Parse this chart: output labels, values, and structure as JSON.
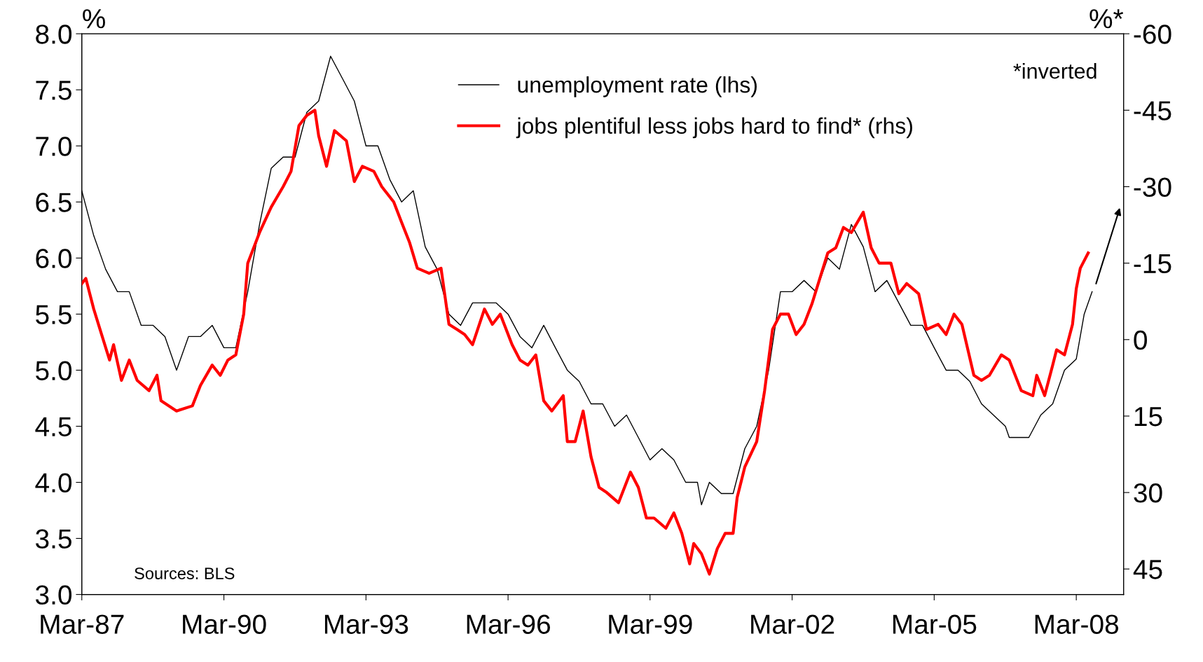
{
  "chart_data": {
    "type": "line",
    "ylabel": "%",
    "y2label": "%*",
    "annotations": [
      "*inverted",
      "Sources: BLS"
    ],
    "xlim": [
      "1987-03",
      "2009-03"
    ],
    "xticks": [
      {
        "value": "1987-03",
        "label": "Mar-87"
      },
      {
        "value": "1990-03",
        "label": "Mar-90"
      },
      {
        "value": "1993-03",
        "label": "Mar-93"
      },
      {
        "value": "1996-03",
        "label": "Mar-96"
      },
      {
        "value": "1999-03",
        "label": "Mar-99"
      },
      {
        "value": "2002-03",
        "label": "Mar-02"
      },
      {
        "value": "2005-03",
        "label": "Mar-05"
      },
      {
        "value": "2008-03",
        "label": "Mar-08"
      }
    ],
    "ylim": [
      3,
      8
    ],
    "yticks": [
      {
        "value": 3,
        "label": "3.0"
      },
      {
        "value": 3.5,
        "label": "3.5"
      },
      {
        "value": 4,
        "label": "4.0"
      },
      {
        "value": 4.5,
        "label": "4.5"
      },
      {
        "value": 5,
        "label": "5.0"
      },
      {
        "value": 5.5,
        "label": "5.5"
      },
      {
        "value": 6,
        "label": "6.0"
      },
      {
        "value": 6.5,
        "label": "6.5"
      },
      {
        "value": 7,
        "label": "7.0"
      },
      {
        "value": 7.5,
        "label": "7.5"
      },
      {
        "value": 8,
        "label": "8.0"
      }
    ],
    "y2lim": [
      50,
      -60
    ],
    "y2ticks": [
      -60,
      -45,
      -30,
      -15,
      0,
      15,
      30,
      45
    ],
    "grid": false,
    "legend": "top",
    "marker": "none",
    "line_style": "solid",
    "series": [
      {
        "name": "unemployment rate (lhs)",
        "color": "#000000",
        "x": [
          "1987-03",
          "1987-06",
          "1987-09",
          "1987-12",
          "1988-03",
          "1988-06",
          "1988-09",
          "1988-12",
          "1989-03",
          "1989-06",
          "1989-09",
          "1989-12",
          "1990-03",
          "1990-06",
          "1990-09",
          "1990-12",
          "1991-03",
          "1991-06",
          "1991-09",
          "1991-12",
          "1992-03",
          "1992-06",
          "1992-09",
          "1992-12",
          "1993-03",
          "1993-06",
          "1993-09",
          "1993-12",
          "1994-03",
          "1994-06",
          "1994-09",
          "1994-12",
          "1995-03",
          "1995-06",
          "1995-09",
          "1995-12",
          "1996-03",
          "1996-06",
          "1996-09",
          "1996-12",
          "1997-03",
          "1997-06",
          "1997-09",
          "1997-12",
          "1998-03",
          "1998-06",
          "1998-09",
          "1998-12",
          "1999-03",
          "1999-06",
          "1999-09",
          "1999-12",
          "2000-03",
          "2000-04",
          "2000-06",
          "2000-09",
          "2000-12",
          "2001-03",
          "2001-06",
          "2001-09",
          "2001-12",
          "2002-03",
          "2002-06",
          "2002-09",
          "2002-12",
          "2003-03",
          "2003-06",
          "2003-09",
          "2003-12",
          "2004-03",
          "2004-06",
          "2004-09",
          "2004-12",
          "2005-03",
          "2005-06",
          "2005-09",
          "2005-12",
          "2006-03",
          "2006-06",
          "2006-09",
          "2006-10",
          "2006-12",
          "2007-03",
          "2007-06",
          "2007-09",
          "2007-12",
          "2008-03",
          "2008-05",
          "2008-07"
        ],
        "values": [
          6.6,
          6.2,
          5.9,
          5.7,
          5.7,
          5.4,
          5.4,
          5.3,
          5.0,
          5.3,
          5.3,
          5.4,
          5.2,
          5.2,
          5.7,
          6.3,
          6.8,
          6.9,
          6.9,
          7.3,
          7.4,
          7.8,
          7.6,
          7.4,
          7.0,
          7.0,
          6.7,
          6.5,
          6.6,
          6.1,
          5.9,
          5.5,
          5.4,
          5.6,
          5.6,
          5.6,
          5.5,
          5.3,
          5.2,
          5.4,
          5.2,
          5.0,
          4.9,
          4.7,
          4.7,
          4.5,
          4.6,
          4.4,
          4.2,
          4.3,
          4.2,
          4.0,
          4.0,
          3.8,
          4.0,
          3.9,
          3.9,
          4.3,
          4.5,
          5.0,
          5.7,
          5.7,
          5.8,
          5.7,
          6.0,
          5.9,
          6.3,
          6.1,
          5.7,
          5.8,
          5.6,
          5.4,
          5.4,
          5.2,
          5.0,
          5.0,
          4.9,
          4.7,
          4.6,
          4.5,
          4.4,
          4.4,
          4.4,
          4.6,
          4.7,
          5.0,
          5.1,
          5.5,
          5.7
        ]
      },
      {
        "name": "jobs plentiful less jobs hard to find* (rhs)",
        "color": "#ff0000",
        "axis": "y2",
        "x": [
          "1987-03",
          "1987-04",
          "1987-06",
          "1987-08",
          "1987-10",
          "1987-11",
          "1988-01",
          "1988-03",
          "1988-05",
          "1988-08",
          "1988-10",
          "1988-11",
          "1989-03",
          "1989-07",
          "1989-09",
          "1989-12",
          "1990-02",
          "1990-04",
          "1990-06",
          "1990-08",
          "1990-09",
          "1990-12",
          "1991-03",
          "1991-06",
          "1991-08",
          "1991-10",
          "1991-12",
          "1992-02",
          "1992-03",
          "1992-05",
          "1992-07",
          "1992-10",
          "1992-12",
          "1993-02",
          "1993-05",
          "1993-07",
          "1993-10",
          "1993-12",
          "1994-02",
          "1994-04",
          "1994-07",
          "1994-10",
          "1994-12",
          "1995-02",
          "1995-04",
          "1995-06",
          "1995-09",
          "1995-11",
          "1996-01",
          "1996-04",
          "1996-06",
          "1996-08",
          "1996-10",
          "1996-12",
          "1997-02",
          "1997-05",
          "1997-06",
          "1997-08",
          "1997-10",
          "1997-12",
          "1998-02",
          "1998-04",
          "1998-07",
          "1998-10",
          "1998-12",
          "1999-02",
          "1999-04",
          "1999-07",
          "1999-09",
          "1999-11",
          "2000-01",
          "2000-02",
          "2000-04",
          "2000-06",
          "2000-08",
          "2000-10",
          "2000-12",
          "2001-01",
          "2001-03",
          "2001-06",
          "2001-08",
          "2001-10",
          "2001-12",
          "2002-02",
          "2002-04",
          "2002-06",
          "2002-08",
          "2002-10",
          "2002-12",
          "2003-02",
          "2003-04",
          "2003-06",
          "2003-09",
          "2003-11",
          "2004-01",
          "2004-04",
          "2004-06",
          "2004-08",
          "2004-11",
          "2005-01",
          "2005-04",
          "2005-06",
          "2005-08",
          "2005-10",
          "2006-01",
          "2006-03",
          "2006-05",
          "2006-08",
          "2006-10",
          "2007-01",
          "2007-04",
          "2007-05",
          "2007-07",
          "2007-09",
          "2007-10",
          "2007-12",
          "2008-02",
          "2008-03",
          "2008-04",
          "2008-06"
        ],
        "values": [
          -11,
          -12,
          -6,
          -1,
          4,
          1,
          8,
          4,
          8,
          10,
          7,
          12,
          14,
          13,
          9,
          5,
          7,
          4,
          3,
          -5,
          -15,
          -21,
          -26,
          -30,
          -33,
          -42,
          -44,
          -45,
          -40,
          -34,
          -41,
          -39,
          -31,
          -34,
          -33,
          -30,
          -27,
          -23,
          -19,
          -14,
          -13,
          -14,
          -3,
          -2,
          -1,
          1,
          -6,
          -3,
          -5,
          1,
          4,
          5,
          3,
          12,
          14,
          11,
          20,
          20,
          14,
          23,
          29,
          30,
          32,
          26,
          29,
          35,
          35,
          37,
          34,
          38,
          44,
          40,
          42,
          46,
          41,
          38,
          38,
          31,
          25,
          20,
          10,
          -2,
          -5,
          -5,
          -1,
          -3,
          -7,
          -12,
          -17,
          -18,
          -22,
          -21,
          -25,
          -18,
          -15,
          -15,
          -9,
          -11,
          -9,
          -2,
          -3,
          -1,
          -5,
          -3,
          7,
          8,
          7,
          3,
          4,
          10,
          11,
          7,
          11,
          5,
          2,
          3,
          -3,
          -10,
          -14,
          -17
        ]
      }
    ]
  }
}
